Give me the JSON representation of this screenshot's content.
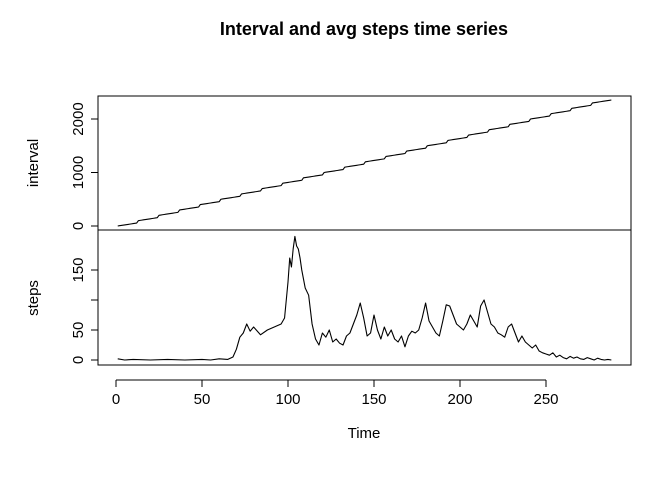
{
  "chart_data": {
    "type": "line",
    "title": "Interval and avg steps time series",
    "xlabel": "Time",
    "x_ticks": [
      0,
      50,
      100,
      150,
      200,
      250
    ],
    "xlim": [
      1,
      288
    ],
    "panels": [
      {
        "ylabel": "interval",
        "ylim": [
          0,
          2355
        ],
        "y_ticks": [
          0,
          1000,
          2000
        ],
        "series": {
          "note_form": "interval = hour*100 + minute for each 5-minute slot t (1..288)",
          "values": [
            0,
            5,
            10,
            15,
            20,
            25,
            30,
            35,
            40,
            45,
            50,
            55,
            100,
            105,
            110,
            115,
            120,
            125,
            130,
            135,
            140,
            145,
            150,
            155,
            200,
            205,
            210,
            215,
            220,
            225,
            230,
            235,
            240,
            245,
            250,
            255,
            300,
            305,
            310,
            315,
            320,
            325,
            330,
            335,
            340,
            345,
            350,
            355,
            400,
            405,
            410,
            415,
            420,
            425,
            430,
            435,
            440,
            445,
            450,
            455,
            500,
            505,
            510,
            515,
            520,
            525,
            530,
            535,
            540,
            545,
            550,
            555,
            600,
            605,
            610,
            615,
            620,
            625,
            630,
            635,
            640,
            645,
            650,
            655,
            700,
            705,
            710,
            715,
            720,
            725,
            730,
            735,
            740,
            745,
            750,
            755,
            800,
            805,
            810,
            815,
            820,
            825,
            830,
            835,
            840,
            845,
            850,
            855,
            900,
            905,
            910,
            915,
            920,
            925,
            930,
            935,
            940,
            945,
            950,
            955,
            1000,
            1005,
            1010,
            1015,
            1020,
            1025,
            1030,
            1035,
            1040,
            1045,
            1050,
            1055,
            1100,
            1105,
            1110,
            1115,
            1120,
            1125,
            1130,
            1135,
            1140,
            1145,
            1150,
            1155,
            1200,
            1205,
            1210,
            1215,
            1220,
            1225,
            1230,
            1235,
            1240,
            1245,
            1250,
            1255,
            1300,
            1305,
            1310,
            1315,
            1320,
            1325,
            1330,
            1335,
            1340,
            1345,
            1350,
            1355,
            1400,
            1405,
            1410,
            1415,
            1420,
            1425,
            1430,
            1435,
            1440,
            1445,
            1450,
            1455,
            1500,
            1505,
            1510,
            1515,
            1520,
            1525,
            1530,
            1535,
            1540,
            1545,
            1550,
            1555,
            1600,
            1605,
            1610,
            1615,
            1620,
            1625,
            1630,
            1635,
            1640,
            1645,
            1650,
            1655,
            1700,
            1705,
            1710,
            1715,
            1720,
            1725,
            1730,
            1735,
            1740,
            1745,
            1750,
            1755,
            1800,
            1805,
            1810,
            1815,
            1820,
            1825,
            1830,
            1835,
            1840,
            1845,
            1850,
            1855,
            1900,
            1905,
            1910,
            1915,
            1920,
            1925,
            1930,
            1935,
            1940,
            1945,
            1950,
            1955,
            2000,
            2005,
            2010,
            2015,
            2020,
            2025,
            2030,
            2035,
            2040,
            2045,
            2050,
            2055,
            2100,
            2105,
            2110,
            2115,
            2120,
            2125,
            2130,
            2135,
            2140,
            2145,
            2150,
            2155,
            2200,
            2205,
            2210,
            2215,
            2220,
            2225,
            2230,
            2235,
            2240,
            2245,
            2250,
            2255,
            2300,
            2305,
            2310,
            2315,
            2320,
            2325,
            2330,
            2335,
            2340,
            2345,
            2350,
            2355
          ]
        }
      },
      {
        "ylabel": "steps",
        "ylim": [
          0,
          206
        ],
        "y_ticks": [
          0,
          50,
          100,
          150
        ],
        "y_tick_labels": [
          "0",
          "50",
          "",
          "150"
        ],
        "series": {
          "anchors_x": [
            1,
            5,
            10,
            20,
            30,
            40,
            50,
            55,
            60,
            65,
            68,
            70,
            72,
            74,
            76,
            78,
            80,
            84,
            88,
            92,
            96,
            98,
            100,
            101,
            102,
            103,
            104,
            105,
            106,
            107,
            108,
            110,
            112,
            114,
            116,
            118,
            120,
            122,
            124,
            126,
            128,
            130,
            132,
            134,
            136,
            138,
            140,
            142,
            144,
            146,
            148,
            150,
            152,
            154,
            156,
            158,
            160,
            162,
            164,
            166,
            168,
            170,
            172,
            174,
            176,
            178,
            180,
            182,
            184,
            186,
            188,
            190,
            192,
            194,
            196,
            198,
            200,
            202,
            204,
            206,
            208,
            210,
            212,
            214,
            216,
            218,
            220,
            222,
            224,
            226,
            228,
            230,
            232,
            234,
            236,
            238,
            240,
            242,
            244,
            246,
            248,
            250,
            252,
            254,
            256,
            258,
            260,
            262,
            264,
            266,
            268,
            270,
            272,
            274,
            276,
            278,
            280,
            282,
            284,
            286,
            288
          ],
          "anchors_y": [
            2,
            0,
            1,
            0,
            1,
            0,
            1,
            0,
            2,
            1,
            5,
            18,
            38,
            45,
            60,
            48,
            55,
            42,
            50,
            55,
            60,
            70,
            130,
            170,
            155,
            185,
            206,
            190,
            185,
            170,
            150,
            120,
            108,
            60,
            35,
            25,
            45,
            38,
            50,
            30,
            35,
            28,
            25,
            40,
            45,
            60,
            75,
            95,
            70,
            40,
            45,
            75,
            50,
            35,
            55,
            40,
            50,
            35,
            30,
            40,
            22,
            40,
            48,
            45,
            50,
            70,
            95,
            65,
            55,
            45,
            40,
            65,
            92,
            90,
            75,
            60,
            55,
            50,
            60,
            75,
            65,
            55,
            90,
            100,
            80,
            60,
            55,
            45,
            42,
            38,
            55,
            60,
            45,
            30,
            40,
            30,
            25,
            20,
            25,
            15,
            12,
            10,
            8,
            12,
            5,
            8,
            4,
            2,
            6,
            3,
            5,
            2,
            1,
            4,
            2,
            0,
            3,
            1,
            0,
            1,
            0
          ]
        }
      }
    ]
  }
}
